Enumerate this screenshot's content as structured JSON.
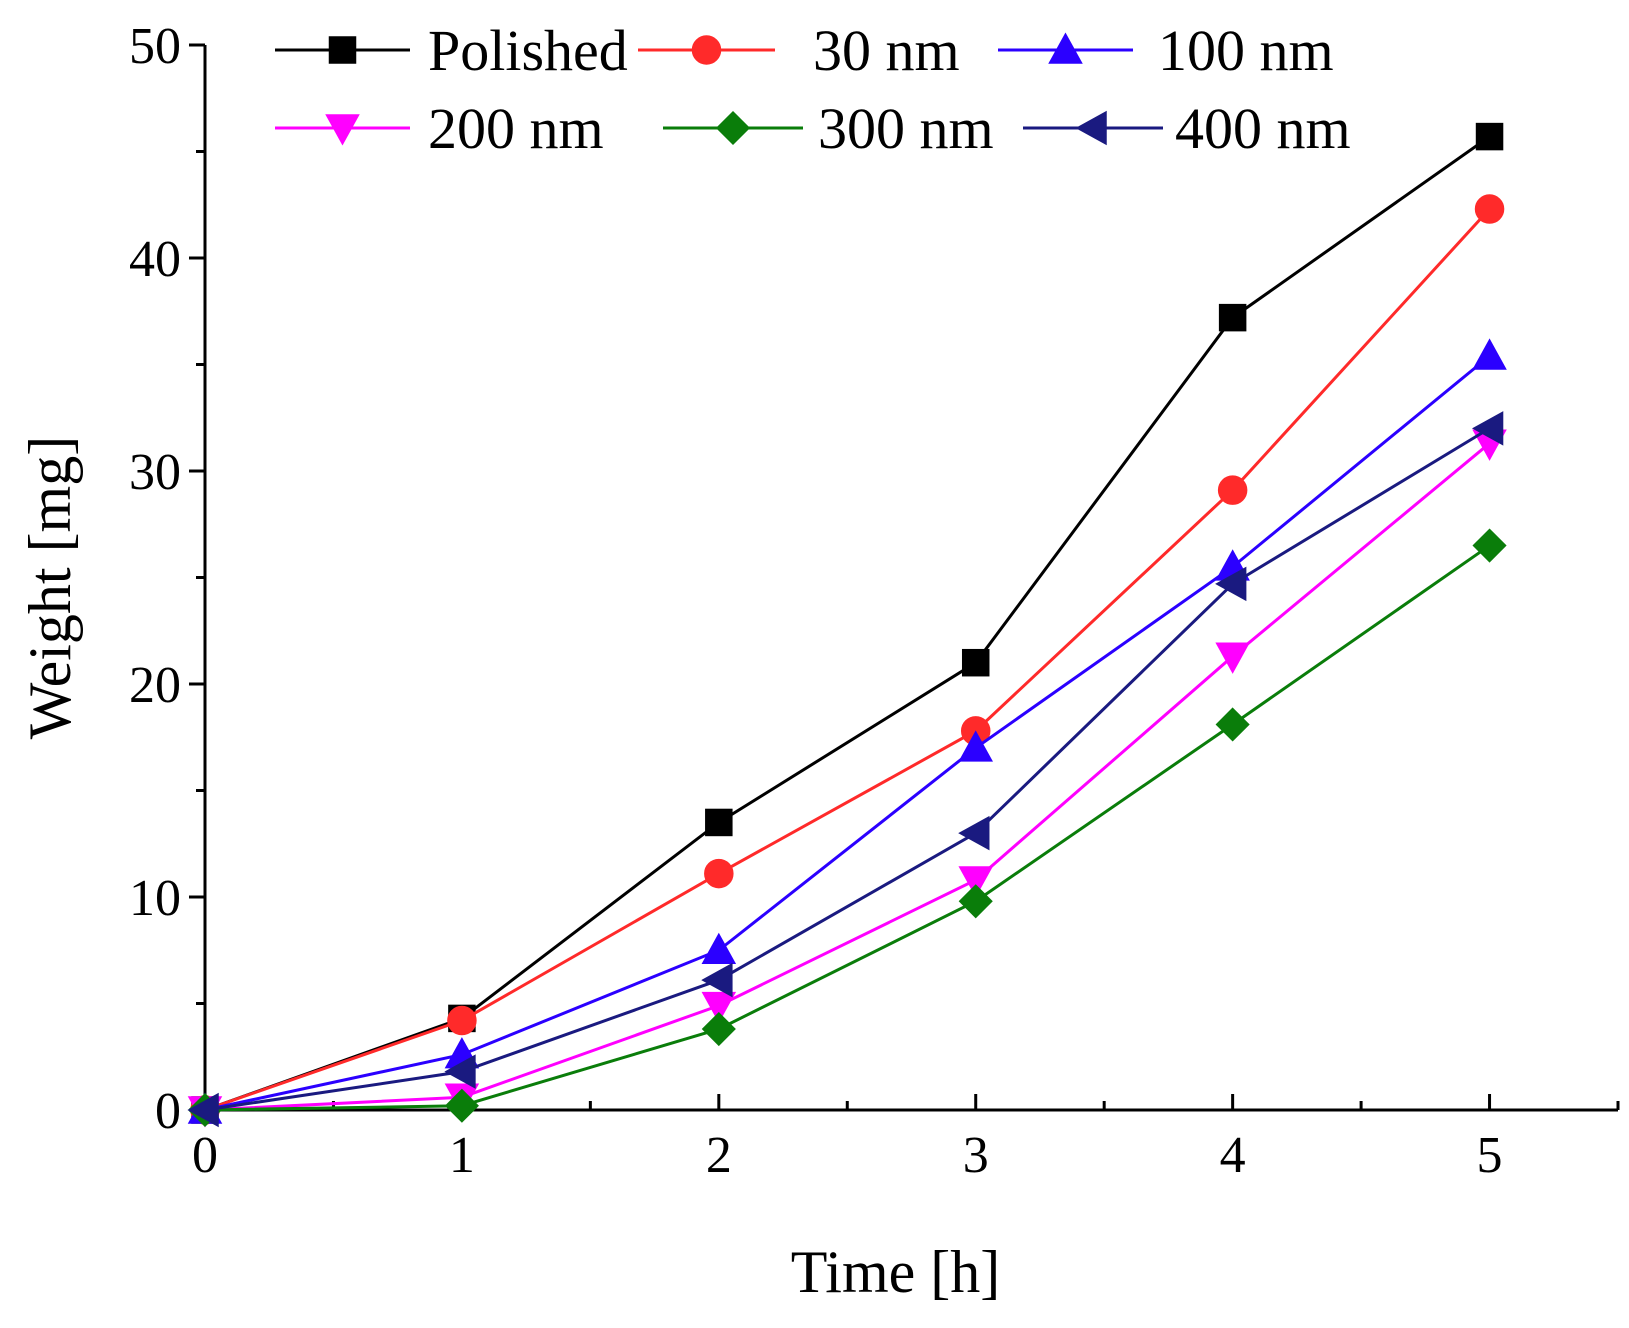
{
  "chart_data": {
    "type": "line",
    "title": "",
    "xlabel": "Time [h]",
    "ylabel": "Weight [mg]",
    "xlim": [
      0,
      5.5
    ],
    "ylim": [
      0,
      50
    ],
    "x_ticks": [
      0,
      1,
      2,
      3,
      4,
      5
    ],
    "x_tick_labels": [
      "0",
      "1",
      "2",
      "3",
      "4",
      "5"
    ],
    "y_ticks": [
      0,
      10,
      20,
      30,
      40,
      50
    ],
    "y_tick_labels": [
      "0",
      "10",
      "20",
      "30",
      "40",
      "50"
    ],
    "grid": false,
    "legend_position": "top",
    "x": [
      0,
      1,
      2,
      3,
      4,
      5
    ],
    "series": [
      {
        "name": "Polished",
        "color": "#000000",
        "marker": "square",
        "values": [
          0,
          4.3,
          13.5,
          21.0,
          37.2,
          45.7
        ]
      },
      {
        "name": "30 nm",
        "color": "#ff2a2a",
        "marker": "circle",
        "values": [
          0,
          4.2,
          11.1,
          17.8,
          29.1,
          42.3
        ]
      },
      {
        "name": "100 nm",
        "color": "#2b00ff",
        "marker": "triangle-up",
        "values": [
          0,
          2.6,
          7.5,
          17.0,
          25.5,
          35.4
        ]
      },
      {
        "name": "200 nm",
        "color": "#ff00ff",
        "marker": "triangle-down",
        "values": [
          0,
          0.6,
          4.9,
          10.8,
          21.3,
          31.3
        ]
      },
      {
        "name": "300 nm",
        "color": "#0a7d0a",
        "marker": "diamond",
        "values": [
          0,
          0.2,
          3.8,
          9.8,
          18.1,
          26.5
        ]
      },
      {
        "name": "400 nm",
        "color": "#1a1a80",
        "marker": "triangle-left",
        "values": [
          0,
          1.8,
          6.1,
          13.0,
          24.7,
          32.0
        ]
      }
    ]
  }
}
